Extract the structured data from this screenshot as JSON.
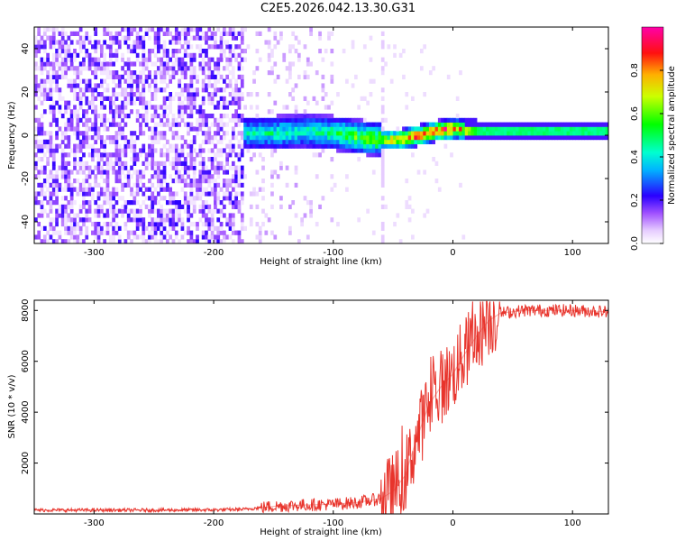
{
  "title": "C2E5.2026.042.13.30.G31",
  "colors": {
    "line": "#e8342c",
    "spectro_low": "#5a12e0",
    "background": "#ffffff"
  },
  "chart_data": [
    {
      "type": "heatmap",
      "name": "spectrogram",
      "xlabel": "Height of straight line (km)",
      "ylabel": "Frequency (Hz)",
      "xlim": [
        -350,
        130
      ],
      "ylim": [
        -50,
        50
      ],
      "xticks": [
        -300,
        -200,
        -100,
        0,
        100
      ],
      "yticks": [
        -40,
        -20,
        0,
        20,
        40
      ],
      "xtick_labels": [
        "-300",
        "-200",
        "-100",
        "0",
        "100"
      ],
      "ytick_labels": [
        "-40",
        "-20",
        "0",
        "20",
        "40"
      ],
      "colorbar": {
        "label": "Normalized spectral amplitude",
        "range": [
          0,
          1
        ],
        "ticks": [
          0.0,
          0.2,
          0.4,
          0.6,
          0.8
        ],
        "tick_labels": [
          "0.0",
          "0.2",
          "0.4",
          "0.6",
          "0.8"
        ]
      },
      "signal_track": {
        "x": [
          -175,
          -150,
          -125,
          -100,
          -75,
          -60,
          -45,
          -30,
          -15,
          0,
          20,
          60,
          100,
          130
        ],
        "freq": [
          0,
          0,
          1,
          0,
          -2,
          -3,
          -3,
          -1,
          1,
          2,
          1,
          1,
          1,
          1
        ],
        "amplitude": [
          0.3,
          0.35,
          0.35,
          0.4,
          0.55,
          0.6,
          0.75,
          0.85,
          0.9,
          0.85,
          0.45,
          0.45,
          0.45,
          0.45
        ]
      }
    },
    {
      "type": "line",
      "name": "snr",
      "xlabel": "Height of straight line (km)",
      "ylabel": "SNR (10 * v/v)",
      "xlim": [
        -350,
        130
      ],
      "ylim": [
        0,
        8400
      ],
      "xticks": [
        -300,
        -200,
        -100,
        0,
        100
      ],
      "yticks": [
        2000,
        4000,
        6000,
        8000
      ],
      "xtick_labels": [
        "-300",
        "-200",
        "-100",
        "0",
        "100"
      ],
      "ytick_labels": [
        "2000",
        "4000",
        "6000",
        "8000"
      ],
      "series": [
        {
          "name": "SNR",
          "x": [
            -350,
            -300,
            -250,
            -200,
            -175,
            -150,
            -125,
            -100,
            -80,
            -60,
            -50,
            -40,
            -30,
            -20,
            -10,
            0,
            10,
            20,
            30,
            40,
            60,
            80,
            100,
            130
          ],
          "y": [
            150,
            150,
            150,
            160,
            180,
            300,
            350,
            380,
            450,
            600,
            900,
            1500,
            3000,
            4300,
            5000,
            5500,
            6300,
            7000,
            7600,
            7900,
            8000,
            8000,
            8000,
            7950
          ]
        }
      ]
    }
  ]
}
